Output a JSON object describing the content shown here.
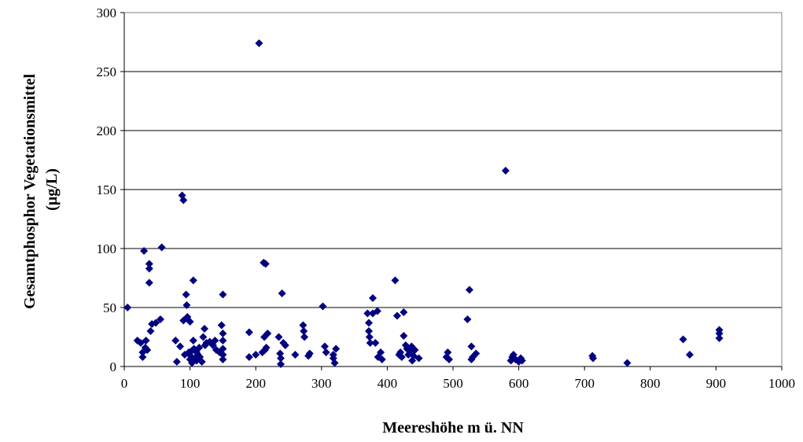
{
  "chart_data": {
    "type": "scatter",
    "title": "",
    "xlabel": "Meereshöhe m ü. NN",
    "ylabel_lines": [
      "Gesamtphosphor Vegetationsmittel",
      "(µg/L)"
    ],
    "xlim": [
      0,
      1000
    ],
    "ylim": [
      0,
      300
    ],
    "xticks": [
      0,
      100,
      200,
      300,
      400,
      500,
      600,
      700,
      800,
      900,
      1000
    ],
    "yticks": [
      0,
      50,
      100,
      150,
      200,
      250,
      300
    ],
    "grid": "horizontal",
    "legend": "none",
    "marker": "diamond",
    "marker_color": "#000080",
    "points": [
      [
        5,
        50
      ],
      [
        20,
        22
      ],
      [
        25,
        20
      ],
      [
        28,
        8
      ],
      [
        28,
        12
      ],
      [
        30,
        98
      ],
      [
        32,
        16
      ],
      [
        33,
        22
      ],
      [
        35,
        14
      ],
      [
        38,
        87
      ],
      [
        38,
        83
      ],
      [
        38,
        71
      ],
      [
        40,
        30
      ],
      [
        42,
        36
      ],
      [
        48,
        37
      ],
      [
        55,
        40
      ],
      [
        57,
        101
      ],
      [
        78,
        22
      ],
      [
        80,
        4
      ],
      [
        85,
        17
      ],
      [
        88,
        145
      ],
      [
        90,
        141
      ],
      [
        90,
        39
      ],
      [
        92,
        10
      ],
      [
        94,
        61
      ],
      [
        95,
        52
      ],
      [
        96,
        42
      ],
      [
        98,
        12
      ],
      [
        100,
        38
      ],
      [
        100,
        6
      ],
      [
        101,
        9
      ],
      [
        102,
        13
      ],
      [
        103,
        3
      ],
      [
        105,
        73
      ],
      [
        105,
        22
      ],
      [
        106,
        15
      ],
      [
        108,
        7
      ],
      [
        110,
        5
      ],
      [
        110,
        12
      ],
      [
        112,
        10
      ],
      [
        114,
        16
      ],
      [
        115,
        8
      ],
      [
        118,
        4
      ],
      [
        120,
        25
      ],
      [
        122,
        32
      ],
      [
        123,
        18
      ],
      [
        125,
        20
      ],
      [
        130,
        21
      ],
      [
        135,
        18
      ],
      [
        138,
        22
      ],
      [
        140,
        14
      ],
      [
        145,
        12
      ],
      [
        148,
        35
      ],
      [
        150,
        61
      ],
      [
        150,
        28
      ],
      [
        150,
        22
      ],
      [
        150,
        15
      ],
      [
        150,
        10
      ],
      [
        150,
        6
      ],
      [
        190,
        29
      ],
      [
        190,
        8
      ],
      [
        200,
        10
      ],
      [
        205,
        274
      ],
      [
        210,
        12
      ],
      [
        212,
        88
      ],
      [
        213,
        25
      ],
      [
        214,
        14
      ],
      [
        215,
        87
      ],
      [
        216,
        16
      ],
      [
        218,
        28
      ],
      [
        235,
        25
      ],
      [
        237,
        11
      ],
      [
        238,
        7
      ],
      [
        238,
        2
      ],
      [
        240,
        62
      ],
      [
        242,
        20
      ],
      [
        245,
        18
      ],
      [
        260,
        10
      ],
      [
        272,
        35
      ],
      [
        273,
        30
      ],
      [
        274,
        25
      ],
      [
        280,
        9
      ],
      [
        282,
        11
      ],
      [
        302,
        51
      ],
      [
        305,
        17
      ],
      [
        307,
        12
      ],
      [
        318,
        10
      ],
      [
        318,
        7
      ],
      [
        320,
        3
      ],
      [
        322,
        15
      ],
      [
        370,
        45
      ],
      [
        372,
        37
      ],
      [
        372,
        30
      ],
      [
        373,
        25
      ],
      [
        374,
        20
      ],
      [
        378,
        58
      ],
      [
        378,
        45
      ],
      [
        382,
        20
      ],
      [
        385,
        47
      ],
      [
        386,
        8
      ],
      [
        390,
        12
      ],
      [
        392,
        6
      ],
      [
        412,
        73
      ],
      [
        415,
        43
      ],
      [
        418,
        10
      ],
      [
        420,
        12
      ],
      [
        422,
        8
      ],
      [
        425,
        46
      ],
      [
        425,
        26
      ],
      [
        428,
        18
      ],
      [
        430,
        15
      ],
      [
        432,
        10
      ],
      [
        435,
        13
      ],
      [
        437,
        17
      ],
      [
        438,
        5
      ],
      [
        440,
        9
      ],
      [
        442,
        14
      ],
      [
        448,
        7
      ],
      [
        490,
        8
      ],
      [
        492,
        12
      ],
      [
        494,
        6
      ],
      [
        522,
        40
      ],
      [
        525,
        65
      ],
      [
        528,
        17
      ],
      [
        528,
        6
      ],
      [
        530,
        8
      ],
      [
        535,
        11
      ],
      [
        580,
        166
      ],
      [
        588,
        5
      ],
      [
        590,
        8
      ],
      [
        592,
        10
      ],
      [
        595,
        6
      ],
      [
        600,
        4
      ],
      [
        603,
        7
      ],
      [
        605,
        5
      ],
      [
        712,
        9
      ],
      [
        713,
        7
      ],
      [
        765,
        3
      ],
      [
        850,
        23
      ],
      [
        860,
        10
      ],
      [
        905,
        31
      ],
      [
        905,
        28
      ],
      [
        905,
        24
      ]
    ]
  }
}
